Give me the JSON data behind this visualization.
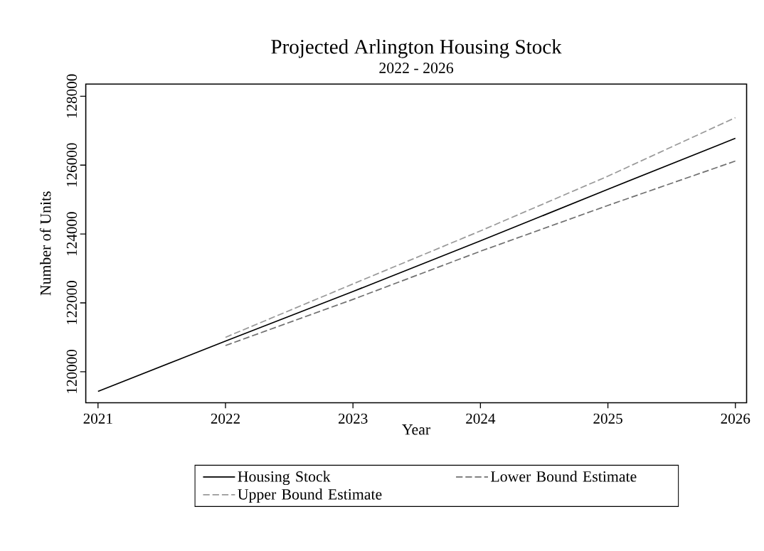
{
  "chart_data": {
    "type": "line",
    "title": "Projected Arlington Housing Stock",
    "subtitle": "2022 - 2026",
    "xlabel": "Year",
    "ylabel": "Number of Units",
    "xlim": [
      2020.904,
      2026.088
    ],
    "xticks": [
      2021,
      2022,
      2023,
      2024,
      2025,
      2026
    ],
    "ylim": [
      119100,
      128356
    ],
    "yticks": [
      120000,
      122000,
      124000,
      126000,
      128000
    ],
    "grid": false,
    "legend": "bottom",
    "marker": "none",
    "series": [
      {
        "name": "Housing Stock",
        "color": "#000000",
        "line_style": "solid",
        "x": [
          2021,
          2022,
          2023,
          2024,
          2025,
          2026
        ],
        "values": [
          119430,
          120890,
          122330,
          123800,
          125300,
          126780
        ]
      },
      {
        "name": "Lower Bound Estimate",
        "color": "#707070",
        "line_style": "dashed",
        "x": [
          2022,
          2023,
          2024,
          2025,
          2026
        ],
        "values": [
          120760,
          122100,
          123500,
          124830,
          126120
        ]
      },
      {
        "name": "Upper Bound Estimate",
        "color": "#999999",
        "line_style": "dashed",
        "x": [
          2022,
          2023,
          2024,
          2025,
          2026
        ],
        "values": [
          121000,
          122550,
          124090,
          125680,
          127380
        ]
      }
    ]
  }
}
